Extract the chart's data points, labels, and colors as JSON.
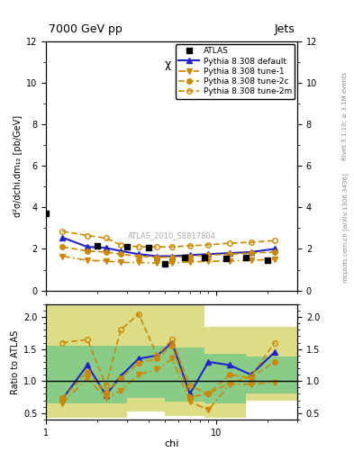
{
  "title_top": "7000 GeV pp",
  "title_right": "Jets",
  "plot_title": "χ (jets)",
  "ylabel_main": "d²σ/dchi,dm₁₂ [pb/GeV]",
  "ylabel_ratio": "Ratio to ATLAS",
  "xlabel": "chi",
  "watermark": "ATLAS_2010_S8817804",
  "right_label_top": "Rivet 3.1.10; ≥ 3.1M events",
  "right_label_bottom": "mcplots.cern.ch [arXiv:1306.3436]",
  "atlas_x": [
    1.0,
    2.0,
    3.0,
    4.0,
    5.0,
    6.5,
    8.5,
    11.5,
    15.0,
    20.0
  ],
  "atlas_y": [
    3.7,
    2.15,
    2.1,
    2.05,
    1.3,
    1.6,
    1.6,
    1.55,
    1.6,
    1.45
  ],
  "default_x": [
    1.25,
    1.75,
    2.25,
    2.75,
    3.5,
    4.5,
    5.5,
    7.0,
    9.0,
    12.0,
    16.0,
    22.0
  ],
  "default_y": [
    2.55,
    2.1,
    2.05,
    1.9,
    1.75,
    1.65,
    1.65,
    1.7,
    1.75,
    1.8,
    1.85,
    2.0
  ],
  "tune1_x": [
    1.25,
    1.75,
    2.25,
    2.75,
    3.5,
    4.5,
    5.5,
    7.0,
    9.0,
    12.0,
    16.0,
    22.0
  ],
  "tune1_y": [
    1.65,
    1.45,
    1.42,
    1.35,
    1.35,
    1.32,
    1.32,
    1.38,
    1.4,
    1.42,
    1.45,
    1.5
  ],
  "tune2c_x": [
    1.25,
    1.75,
    2.25,
    2.75,
    3.5,
    4.5,
    5.5,
    7.0,
    9.0,
    12.0,
    16.0,
    22.0
  ],
  "tune2c_y": [
    2.1,
    1.9,
    1.85,
    1.75,
    1.65,
    1.6,
    1.6,
    1.65,
    1.7,
    1.75,
    1.8,
    1.85
  ],
  "tune2m_x": [
    1.25,
    1.75,
    2.25,
    2.75,
    3.5,
    4.5,
    5.5,
    7.0,
    9.0,
    12.0,
    16.0,
    22.0
  ],
  "tune2m_y": [
    2.85,
    2.65,
    2.52,
    2.2,
    2.1,
    2.1,
    2.1,
    2.15,
    2.2,
    2.28,
    2.32,
    2.4
  ],
  "ratio_default_x": [
    1.25,
    1.75,
    2.25,
    2.75,
    3.5,
    4.5,
    5.5,
    7.0,
    9.0,
    12.0,
    16.0,
    22.0
  ],
  "ratio_default_y": [
    0.72,
    1.25,
    0.78,
    1.08,
    1.35,
    1.4,
    1.6,
    0.8,
    1.3,
    1.25,
    1.1,
    1.45
  ],
  "ratio_tune1_x": [
    1.25,
    1.75,
    2.25,
    2.75,
    3.5,
    4.5,
    5.5,
    7.0,
    9.0,
    12.0,
    16.0,
    22.0
  ],
  "ratio_tune1_y": [
    0.65,
    1.05,
    0.73,
    0.85,
    1.1,
    1.18,
    1.35,
    0.68,
    0.55,
    0.95,
    0.95,
    0.98
  ],
  "ratio_tune2c_x": [
    1.25,
    1.75,
    2.25,
    2.75,
    3.5,
    4.5,
    5.5,
    7.0,
    9.0,
    12.0,
    16.0,
    22.0
  ],
  "ratio_tune2c_y": [
    0.73,
    1.15,
    0.82,
    1.05,
    1.28,
    1.35,
    1.55,
    0.75,
    0.8,
    1.1,
    1.05,
    1.3
  ],
  "ratio_tune2m_x": [
    1.25,
    1.75,
    2.25,
    2.75,
    3.5,
    4.5,
    5.5,
    7.0,
    9.0,
    12.0,
    16.0,
    22.0
  ],
  "ratio_tune2m_y": [
    1.6,
    1.65,
    0.93,
    1.8,
    2.05,
    1.4,
    1.65,
    0.93,
    0.8,
    0.97,
    1.07,
    1.6
  ],
  "band_yellow_x": [
    1.0,
    2.0,
    3.0,
    5.0,
    8.5,
    15.0,
    30.0
  ],
  "band_yellow_lo": [
    0.42,
    0.42,
    0.52,
    0.45,
    0.42,
    0.7,
    0.7
  ],
  "band_yellow_hi": [
    2.2,
    2.2,
    2.2,
    2.2,
    1.85,
    1.85,
    1.85
  ],
  "band_green_x": [
    1.0,
    2.0,
    3.0,
    5.0,
    8.5,
    15.0,
    30.0
  ],
  "band_green_lo": [
    0.65,
    0.65,
    0.73,
    0.68,
    0.65,
    0.8,
    0.8
  ],
  "band_green_hi": [
    1.55,
    1.55,
    1.55,
    1.52,
    1.42,
    1.38,
    1.38
  ],
  "color_blue": "#2222cc",
  "color_orange": "#cc8800",
  "color_green": "#88cc88",
  "color_yellow": "#dddd88",
  "ylim_main": [
    0,
    12
  ],
  "ylim_ratio": [
    0.4,
    2.2
  ],
  "xlim": [
    1.0,
    30.0
  ]
}
